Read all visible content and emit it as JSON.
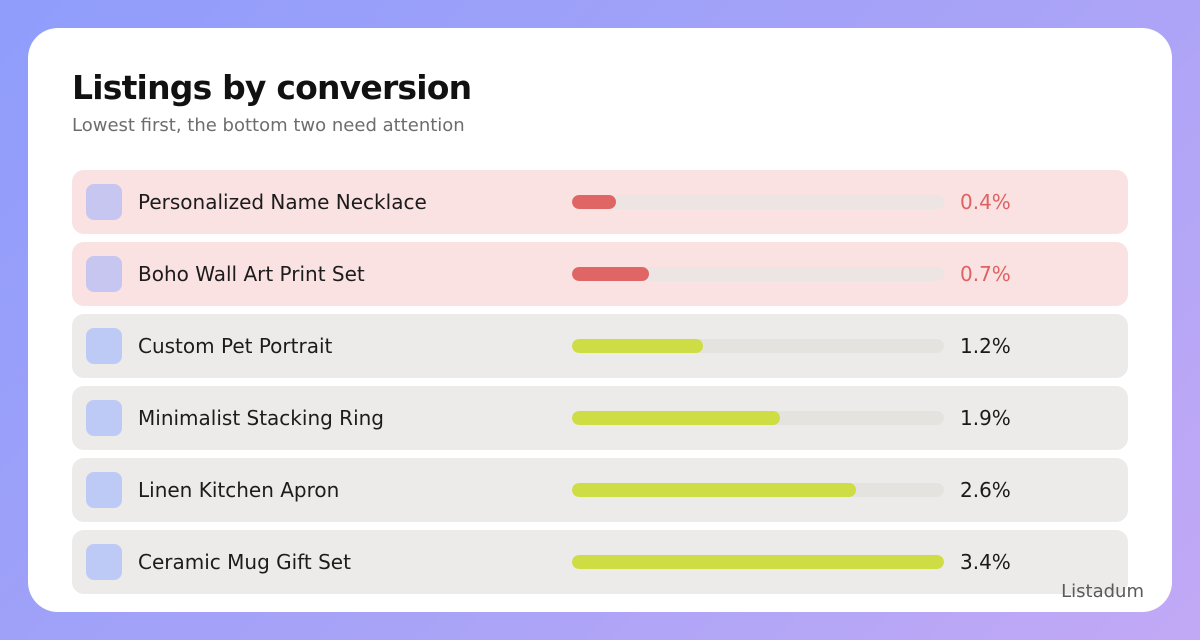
{
  "header": {
    "title": "Listings by conversion",
    "subtitle": "Lowest first, the bottom two need attention"
  },
  "brand": "Listadum",
  "colors": {
    "alert_fill": "#e06666",
    "alert_row": "#f9e2e1",
    "normal_fill": "#cfdd44",
    "normal_row": "#ecebe9",
    "thumb": "#bdcaf6"
  },
  "chart_data": {
    "type": "bar",
    "orientation": "horizontal",
    "categories": [
      "Personalized Name Necklace",
      "Boho Wall Art Print Set",
      "Custom Pet Portrait",
      "Minimalist Stacking Ring",
      "Linen Kitchen Apron",
      "Ceramic Mug Gift Set"
    ],
    "values": [
      0.4,
      0.7,
      1.2,
      1.9,
      2.6,
      3.4
    ],
    "value_labels": [
      "0.4%",
      "0.7%",
      "1.2%",
      "1.9%",
      "2.6%",
      "3.4%"
    ],
    "highlighted": [
      true,
      true,
      false,
      false,
      false,
      false
    ],
    "xlim": [
      0,
      3.4
    ],
    "title": "Listings by conversion",
    "subtitle": "Lowest first, the bottom two need attention",
    "grid": false
  }
}
